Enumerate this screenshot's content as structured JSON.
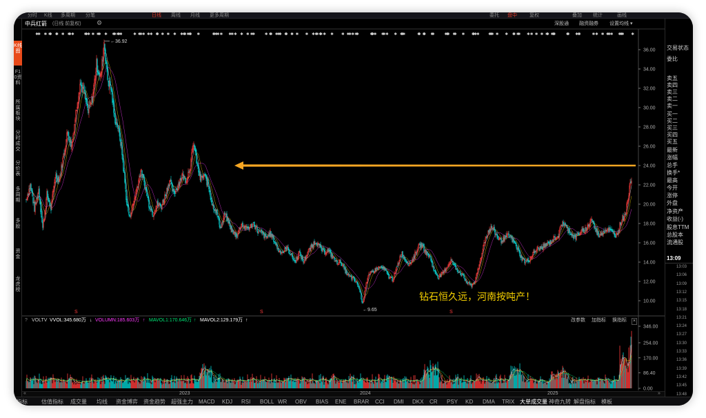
{
  "top_tabs": [
    {
      "label": "分时"
    },
    {
      "label": "K线"
    },
    {
      "label": "多周期"
    },
    {
      "label": "分笔"
    },
    {
      "label": "日线",
      "active": true
    },
    {
      "label": "周线"
    },
    {
      "label": "月线"
    },
    {
      "label": "更多周期"
    },
    {
      "label": "委托"
    },
    {
      "label": "盘中",
      "active": true
    },
    {
      "label": "复权"
    },
    {
      "label": "叠加"
    },
    {
      "label": "统计"
    },
    {
      "label": "画线"
    }
  ],
  "left_tabs": [
    {
      "label": "K线图",
      "active": true
    },
    {
      "label": "F10资料"
    },
    {
      "label": "所属板块"
    },
    {
      "label": "分时成交"
    },
    {
      "label": "分价表"
    },
    {
      "label": "多周期"
    },
    {
      "label": "多股"
    },
    {
      "label": "资金"
    },
    {
      "label": "龙虎榜"
    }
  ],
  "header": {
    "stock_name": "中兵红箭",
    "subtitle": "(日线 前复权)",
    "right_buttons": [
      "深股通",
      "融资融券",
      "设置均线 ▾"
    ]
  },
  "price_axis": {
    "ticks": [
      "36.00",
      "34.00",
      "32.00",
      "30.00",
      "28.00",
      "26.00",
      "24.00",
      "22.00",
      "20.00",
      "18.00",
      "16.00",
      "14.00",
      "12.00",
      "10.00"
    ]
  },
  "annotations": {
    "high_label": "36.92",
    "low_label": "9.65",
    "caption": "钻石恒久远，河南按吨产！"
  },
  "volume_bar": {
    "indicator": "VOLTV",
    "vvol": "VVOL:345.680万",
    "volumn": "VOLUMN:185.603万",
    "mavol1": "MAVOL1:170.646万",
    "mavol2": "MAVOL2:129.179万",
    "right_buttons": [
      "改参数",
      "加指标",
      "换指标"
    ]
  },
  "volume_axis": {
    "ticks": [
      "346.00",
      "254.00",
      "170.00",
      "86.40",
      "0.00"
    ]
  },
  "time_axis": {
    "labels": [
      "2023",
      "2024",
      "2025"
    ]
  },
  "right_panel": {
    "labels": [
      "交易状态",
      "委比",
      "卖五",
      "卖四",
      "卖三",
      "卖二",
      "卖一",
      "买一",
      "买二",
      "买三",
      "买四",
      "买五",
      "最新",
      "涨幅",
      "总手",
      "换手*",
      "最高",
      "今开",
      "涨停",
      "外盘",
      "净资产",
      "收益(-)",
      "股息TTM",
      "总股本",
      "流通股"
    ],
    "time": "13:09",
    "times": [
      "13:03",
      "13:06",
      "13:09",
      "13:12",
      "13:15",
      "13:18",
      "13:21",
      "13:24",
      "13:27",
      "13:30",
      "13:33",
      "13:36",
      "13:39",
      "13:42",
      "13:45",
      "13:48"
    ]
  },
  "bottom_tabs": [
    {
      "label": "指标"
    },
    {
      "label": "估值指标"
    },
    {
      "label": "成交量"
    },
    {
      "label": "均线"
    },
    {
      "label": "资金博弈"
    },
    {
      "label": "资金趋势"
    },
    {
      "label": "超强主力"
    },
    {
      "label": "MACD"
    },
    {
      "label": "KDJ"
    },
    {
      "label": "RSI"
    },
    {
      "label": "BOLL"
    },
    {
      "label": "WR"
    },
    {
      "label": "OBV"
    },
    {
      "label": "BIAS"
    },
    {
      "label": "ENE"
    },
    {
      "label": "BRAR"
    },
    {
      "label": "CCI"
    },
    {
      "label": "DMI"
    },
    {
      "label": "DKX"
    },
    {
      "label": "CR"
    },
    {
      "label": "PSY"
    },
    {
      "label": "KD"
    },
    {
      "label": "DMA"
    },
    {
      "label": "TRIX"
    },
    {
      "label": "大单成交量",
      "active": true
    },
    {
      "label": "神奇九转"
    },
    {
      "label": "解盘指标"
    },
    {
      "label": "模板"
    }
  ],
  "colors": {
    "up": "#ff3b3b",
    "down": "#00d0d0",
    "ma1": "#ffffff",
    "ma2": "#ffd700",
    "ma3": "#ff3bff",
    "arrow": "#f6a623",
    "caption": "#f5d000"
  }
}
